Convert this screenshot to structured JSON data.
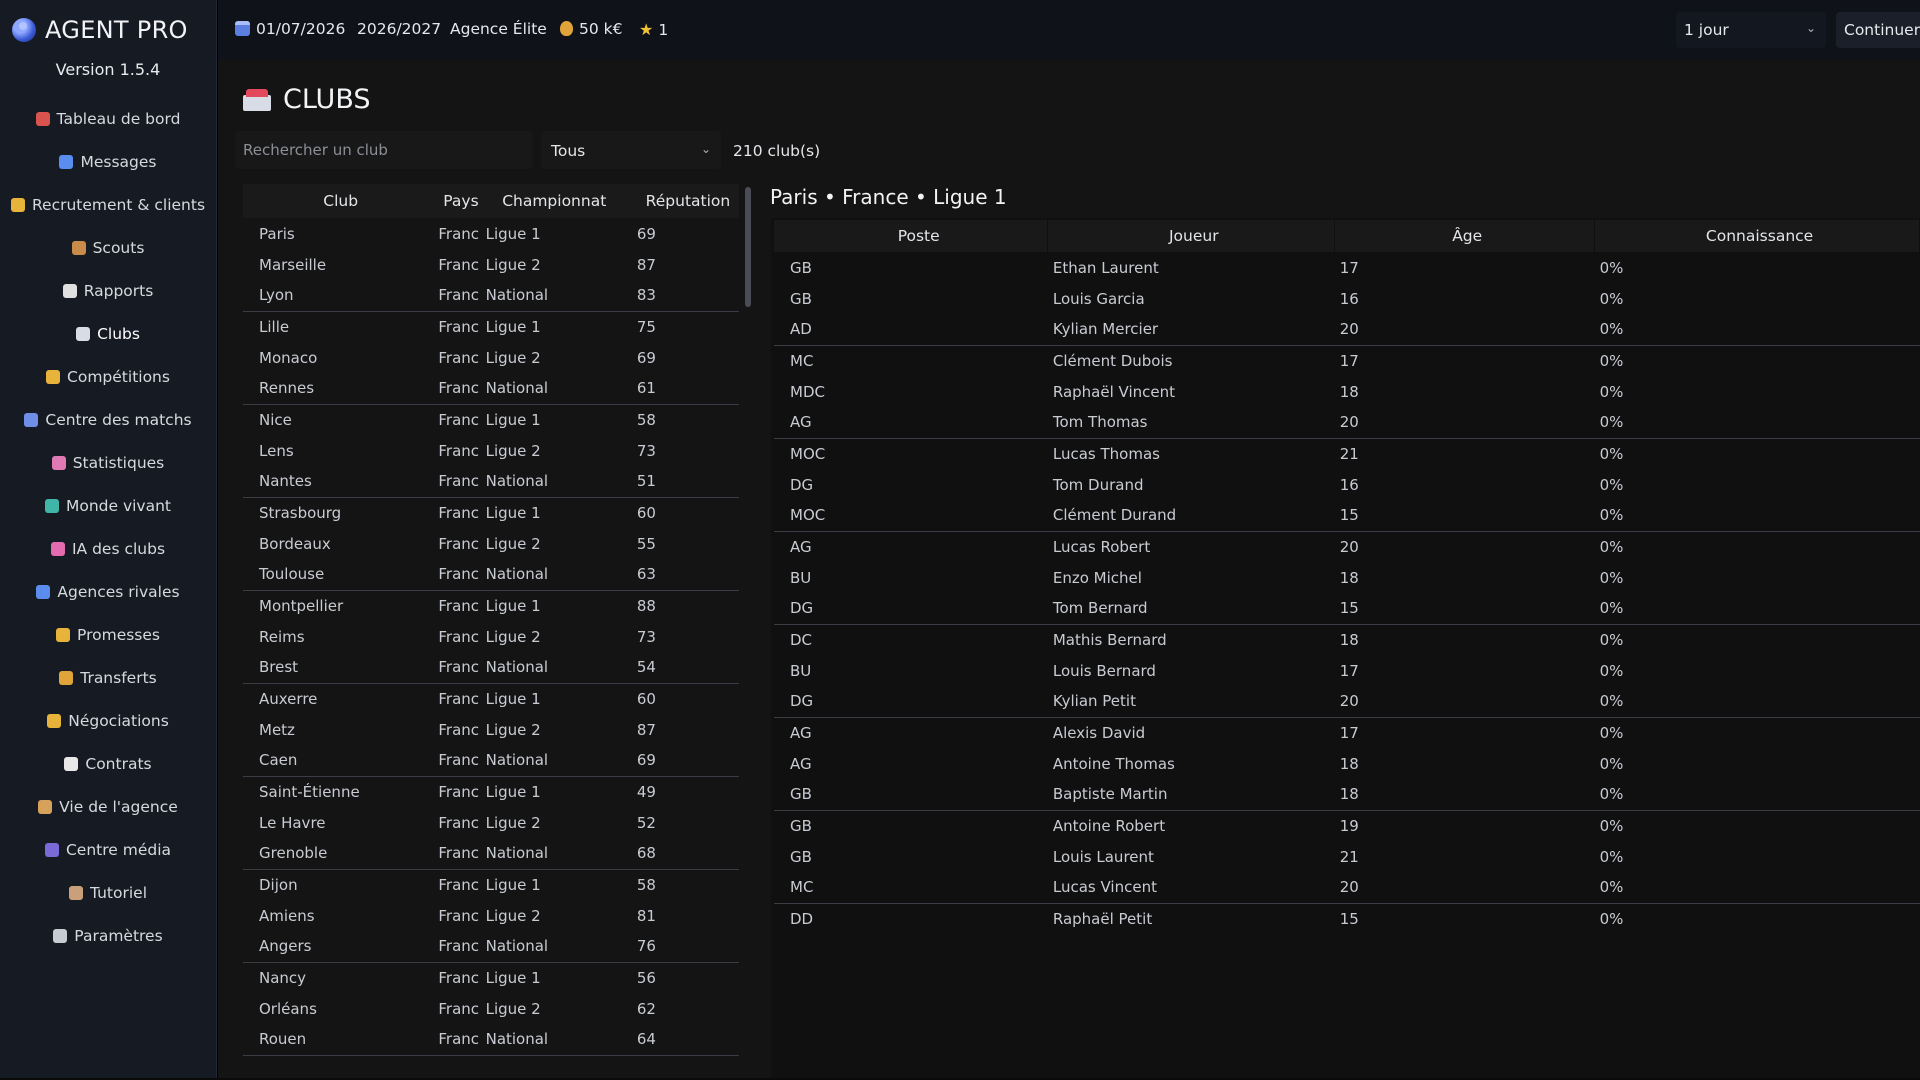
{
  "app": {
    "title": "AGENT PRO",
    "version": "Version 1.5.4"
  },
  "sidebar": {
    "items": [
      {
        "label": "Tableau de bord",
        "icon": "house-icon",
        "color": "#d9534f"
      },
      {
        "label": "Messages",
        "icon": "mail-icon",
        "color": "#5b8def"
      },
      {
        "label": "Recrutement & clients",
        "icon": "handshake-icon",
        "color": "#e8b33a"
      },
      {
        "label": "Scouts",
        "icon": "detective-icon",
        "color": "#c98b4a"
      },
      {
        "label": "Rapports",
        "icon": "report-icon",
        "color": "#e0e0e0"
      },
      {
        "label": "Clubs",
        "icon": "stadium-icon",
        "color": "#d8dce6"
      },
      {
        "label": "Compétitions",
        "icon": "trophy-icon",
        "color": "#e8b33a"
      },
      {
        "label": "Centre des matchs",
        "icon": "ball-icon",
        "color": "#6f8ee8"
      },
      {
        "label": "Statistiques",
        "icon": "chart-icon",
        "color": "#e07ab5"
      },
      {
        "label": "Monde vivant",
        "icon": "globe-icon",
        "color": "#3fb6a8"
      },
      {
        "label": "IA des clubs",
        "icon": "brain-icon",
        "color": "#e56bb0"
      },
      {
        "label": "Agences rivales",
        "icon": "building-icon",
        "color": "#5b8def"
      },
      {
        "label": "Promesses",
        "icon": "handshake-icon",
        "color": "#e8b33a"
      },
      {
        "label": "Transferts",
        "icon": "money-bag-icon",
        "color": "#e0a43a"
      },
      {
        "label": "Négociations",
        "icon": "handshake-icon",
        "color": "#e8b33a"
      },
      {
        "label": "Contrats",
        "icon": "document-icon",
        "color": "#e8e8e8"
      },
      {
        "label": "Vie de l'agence",
        "icon": "person-icon",
        "color": "#d6a15a"
      },
      {
        "label": "Centre média",
        "icon": "media-icon",
        "color": "#7a6ad8"
      },
      {
        "label": "Tutoriel",
        "icon": "teacher-icon",
        "color": "#c9a07a"
      },
      {
        "label": "Paramètres",
        "icon": "gear-icon",
        "color": "#c8ccd2"
      }
    ],
    "active_index": 5
  },
  "topbar": {
    "date": "01/07/2026",
    "season": "2026/2027",
    "agency": "Agence Élite",
    "money": "50 k€",
    "stars": "1",
    "speed": "1 jour",
    "continue": "Continuer ▶"
  },
  "clubs": {
    "title": "CLUBS",
    "search_placeholder": "Rechercher un club",
    "filter": "Tous",
    "count": "210 club(s)",
    "columns": [
      "Club",
      "Pays",
      "Championnat",
      "Réputation"
    ],
    "rows": [
      [
        "Paris",
        "Franc",
        "Ligue 1",
        "69"
      ],
      [
        "Marseille",
        "Franc",
        "Ligue 2",
        "87"
      ],
      [
        "Lyon",
        "Franc",
        "National",
        "83"
      ],
      [
        "Lille",
        "Franc",
        "Ligue 1",
        "75"
      ],
      [
        "Monaco",
        "Franc",
        "Ligue 2",
        "69"
      ],
      [
        "Rennes",
        "Franc",
        "National",
        "61"
      ],
      [
        "Nice",
        "Franc",
        "Ligue 1",
        "58"
      ],
      [
        "Lens",
        "Franc",
        "Ligue 2",
        "73"
      ],
      [
        "Nantes",
        "Franc",
        "National",
        "51"
      ],
      [
        "Strasbourg",
        "Franc",
        "Ligue 1",
        "60"
      ],
      [
        "Bordeaux",
        "Franc",
        "Ligue 2",
        "55"
      ],
      [
        "Toulouse",
        "Franc",
        "National",
        "63"
      ],
      [
        "Montpellier",
        "Franc",
        "Ligue 1",
        "88"
      ],
      [
        "Reims",
        "Franc",
        "Ligue 2",
        "73"
      ],
      [
        "Brest",
        "Franc",
        "National",
        "54"
      ],
      [
        "Auxerre",
        "Franc",
        "Ligue 1",
        "60"
      ],
      [
        "Metz",
        "Franc",
        "Ligue 2",
        "87"
      ],
      [
        "Caen",
        "Franc",
        "National",
        "69"
      ],
      [
        "Saint-Étienne",
        "Franc",
        "Ligue 1",
        "49"
      ],
      [
        "Le Havre",
        "Franc",
        "Ligue 2",
        "52"
      ],
      [
        "Grenoble",
        "Franc",
        "National",
        "68"
      ],
      [
        "Dijon",
        "Franc",
        "Ligue 1",
        "58"
      ],
      [
        "Amiens",
        "Franc",
        "Ligue 2",
        "81"
      ],
      [
        "Angers",
        "Franc",
        "National",
        "76"
      ],
      [
        "Nancy",
        "Franc",
        "Ligue 1",
        "56"
      ],
      [
        "Orléans",
        "Franc",
        "Ligue 2",
        "62"
      ],
      [
        "Rouen",
        "Franc",
        "National",
        "64"
      ]
    ]
  },
  "squad": {
    "header": "Paris • France • Ligue 1",
    "columns": [
      "Poste",
      "Joueur",
      "Âge",
      "Connaissance"
    ],
    "rows": [
      [
        "GB",
        "Ethan Laurent",
        "17",
        "0%"
      ],
      [
        "GB",
        "Louis Garcia",
        "16",
        "0%"
      ],
      [
        "AD",
        "Kylian Mercier",
        "20",
        "0%"
      ],
      [
        "MC",
        "Clément Dubois",
        "17",
        "0%"
      ],
      [
        "MDC",
        "Raphaël Vincent",
        "18",
        "0%"
      ],
      [
        "AG",
        "Tom Thomas",
        "20",
        "0%"
      ],
      [
        "MOC",
        "Lucas Thomas",
        "21",
        "0%"
      ],
      [
        "DG",
        "Tom Durand",
        "16",
        "0%"
      ],
      [
        "MOC",
        "Clément Durand",
        "15",
        "0%"
      ],
      [
        "AG",
        "Lucas Robert",
        "20",
        "0%"
      ],
      [
        "BU",
        "Enzo Michel",
        "18",
        "0%"
      ],
      [
        "DG",
        "Tom Bernard",
        "15",
        "0%"
      ],
      [
        "DC",
        "Mathis Bernard",
        "18",
        "0%"
      ],
      [
        "BU",
        "Louis Bernard",
        "17",
        "0%"
      ],
      [
        "DG",
        "Kylian Petit",
        "20",
        "0%"
      ],
      [
        "AG",
        "Alexis David",
        "17",
        "0%"
      ],
      [
        "AG",
        "Antoine Thomas",
        "18",
        "0%"
      ],
      [
        "GB",
        "Baptiste Martin",
        "18",
        "0%"
      ],
      [
        "GB",
        "Antoine Robert",
        "19",
        "0%"
      ],
      [
        "GB",
        "Louis Laurent",
        "21",
        "0%"
      ],
      [
        "MC",
        "Lucas Vincent",
        "20",
        "0%"
      ],
      [
        "DD",
        "Raphaël Petit",
        "15",
        "0%"
      ]
    ]
  }
}
